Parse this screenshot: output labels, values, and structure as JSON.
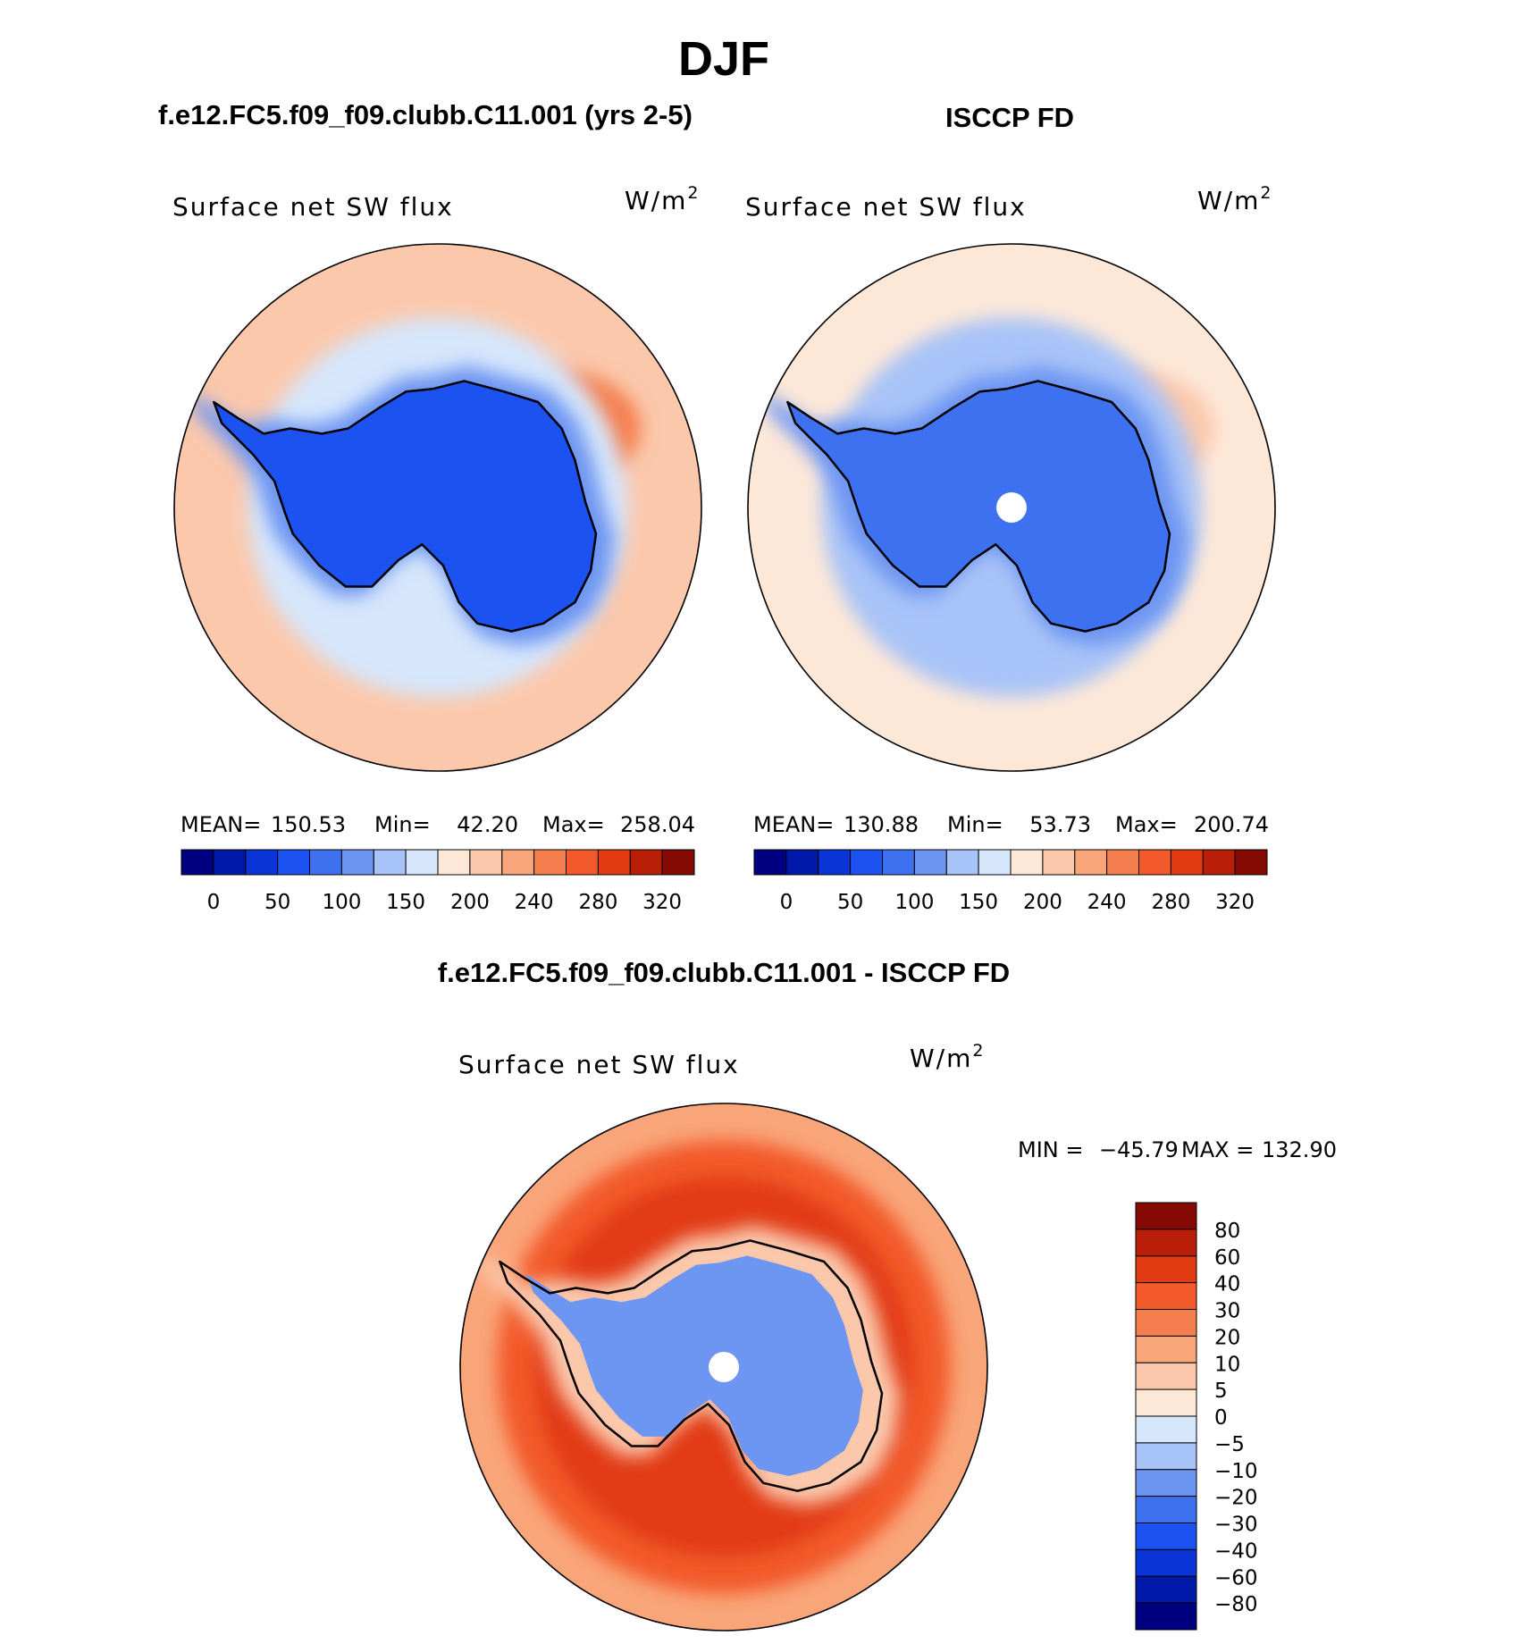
{
  "figure": {
    "season": "DJF",
    "model_title": "f.e12.FC5.f09_f09.clubb.C11.001 (yrs 2-5)",
    "obs_title": "ISCCP FD",
    "diff_title": "f.e12.FC5.f09_f09.clubb.C11.001 - ISCCP FD"
  },
  "colors": {
    "abs_scale": [
      "#000080",
      "#0018a8",
      "#0a34d6",
      "#1c52f0",
      "#3d71f0",
      "#6d95f2",
      "#a8c3f7",
      "#d6e6fb",
      "#fde8d8",
      "#fbc8ac",
      "#f9a57a",
      "#f57e4e",
      "#f25a2b",
      "#e23a12",
      "#b81e08",
      "#860a04"
    ],
    "diff_scale": [
      "#000080",
      "#0018a8",
      "#0a34d6",
      "#1c52f0",
      "#3d71f0",
      "#6d95f2",
      "#a8c3f7",
      "#d6e6fb",
      "#fde8d8",
      "#fbc8ac",
      "#f9a57a",
      "#f57e4e",
      "#f25a2b",
      "#e23a12",
      "#b81e08",
      "#860a04"
    ],
    "coast": "#000000",
    "pole_hole": "#ffffff"
  },
  "chart_data": [
    {
      "type": "heatmap",
      "projection": "south-polar-stereographic",
      "panel": "model",
      "title": "f.e12.FC5.f09_f09.clubb.C11.001 (yrs 2-5)",
      "variable": "Surface net SW flux",
      "units": "W/m2",
      "units_base": "W/m",
      "units_exp": "2",
      "stats": {
        "mean_label": "MEAN=",
        "mean": "150.53",
        "min_label": "Min=",
        "min": "42.20",
        "max_label": "Max=",
        "max": "258.04"
      },
      "contour_levels": [
        0,
        25,
        50,
        75,
        100,
        125,
        150,
        175,
        200,
        220,
        240,
        260,
        280,
        300,
        320
      ],
      "colorbar_labels": [
        "0",
        "50",
        "100",
        "150",
        "200",
        "240",
        "280",
        "320"
      ],
      "colorbar_orientation": "horizontal",
      "regions": {
        "ocean": 210,
        "ocean_far_high": 245,
        "ocean_near_ice": 150,
        "sea_ice": 110,
        "continent": 60
      }
    },
    {
      "type": "heatmap",
      "projection": "south-polar-stereographic",
      "panel": "obs",
      "title": "ISCCP FD",
      "variable": "Surface net SW flux",
      "units": "W/m2",
      "units_base": "W/m",
      "units_exp": "2",
      "stats": {
        "mean_label": "MEAN=",
        "mean": "130.88",
        "min_label": "Min=",
        "min": "53.73",
        "max_label": "Max=",
        "max": "200.74"
      },
      "contour_levels": [
        0,
        25,
        50,
        75,
        100,
        125,
        150,
        175,
        200,
        220,
        240,
        260,
        280,
        300,
        320
      ],
      "colorbar_labels": [
        "0",
        "50",
        "100",
        "150",
        "200",
        "240",
        "280",
        "320"
      ],
      "colorbar_orientation": "horizontal",
      "regions": {
        "ocean": 175,
        "ocean_far_high": 205,
        "ocean_near_ice": 135,
        "sea_ice": 110,
        "continent": 85
      },
      "missing_pole": true
    },
    {
      "type": "heatmap",
      "projection": "south-polar-stereographic",
      "panel": "difference",
      "title": "f.e12.FC5.f09_f09.clubb.C11.001 - ISCCP FD",
      "variable": "Surface net SW flux",
      "units": "W/m2",
      "units_base": "W/m",
      "units_exp": "2",
      "stats": {
        "min_label": "MIN =",
        "min": "−45.79",
        "max_label": "MAX =",
        "max": "132.90"
      },
      "contour_levels": [
        -80,
        -60,
        -40,
        -30,
        -20,
        -10,
        -5,
        0,
        5,
        10,
        20,
        30,
        40,
        60,
        80
      ],
      "colorbar_labels": [
        "80",
        "60",
        "40",
        "30",
        "20",
        "10",
        "5",
        "0",
        "−5",
        "−10",
        "−20",
        "−30",
        "−40",
        "−60",
        "−80"
      ],
      "colorbar_orientation": "vertical",
      "regions": {
        "ocean_outer": 15,
        "ocean_mid": 35,
        "ocean_ring": 45,
        "near_coast": 5,
        "continent": -15
      },
      "missing_pole": true
    }
  ]
}
